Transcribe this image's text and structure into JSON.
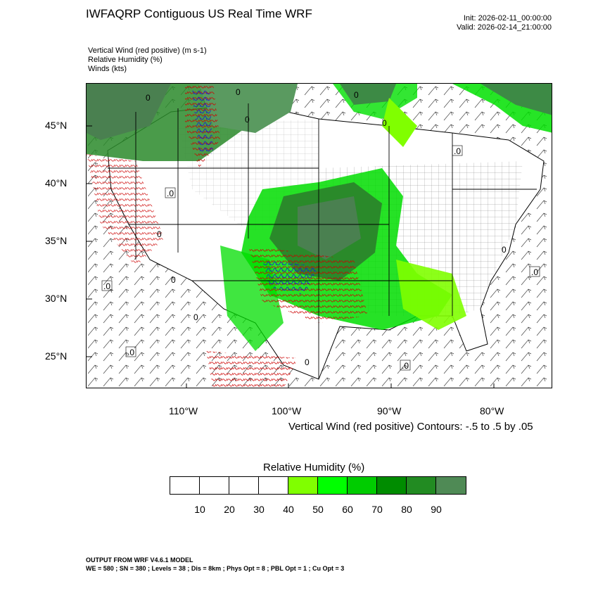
{
  "header": {
    "title": "IWFAQRP Contiguous US Real Time WRF",
    "init": "Init: 2026-02-11_00:00:00",
    "valid": "Valid: 2026-02-14_21:00:00"
  },
  "fields": [
    "Vertical Wind (red positive)   (m s-1)",
    "Relative Humidity   (%)",
    "Winds   (kts)"
  ],
  "map": {
    "lat_labels": [
      "45°N",
      "40°N",
      "35°N",
      "30°N",
      "25°N"
    ],
    "lon_labels": [
      "110°W",
      "100°W",
      "90°W",
      "80°W"
    ],
    "contour_labels": [
      "0",
      "0",
      "0",
      "0",
      ".0",
      "0",
      ".0",
      "0",
      ".0",
      "0",
      "0",
      ".0",
      ".0",
      ".0",
      "0",
      "0"
    ],
    "colors": {
      "rh_light": "#80ff00",
      "rh_mid": "#00e000",
      "rh_dark": "#2a8a2a",
      "rh_darkest": "#4a8050",
      "updraft": "#cc0000",
      "downdraft": "#0000cc"
    }
  },
  "contour_note": "Vertical Wind (red positive) Contours: -.5 to .5 by .05",
  "colorbar": {
    "title": "Relative Humidity  (%)",
    "colors": [
      "#ffffff",
      "#ffffff",
      "#ffffff",
      "#ffffff",
      "#80ff00",
      "#00ff00",
      "#00cc00",
      "#008c00",
      "#228b22",
      "#4f8a55"
    ],
    "labels": [
      "10",
      "20",
      "30",
      "40",
      "50",
      "60",
      "70",
      "80",
      "90"
    ]
  },
  "footer": {
    "line1": "OUTPUT FROM WRF V4.6.1 MODEL",
    "line2": "WE = 580 ; SN = 380 ; Levels = 38 ; Dis = 8km ; Phys Opt = 8 ; PBL Opt = 1 ; Cu Opt = 3"
  }
}
